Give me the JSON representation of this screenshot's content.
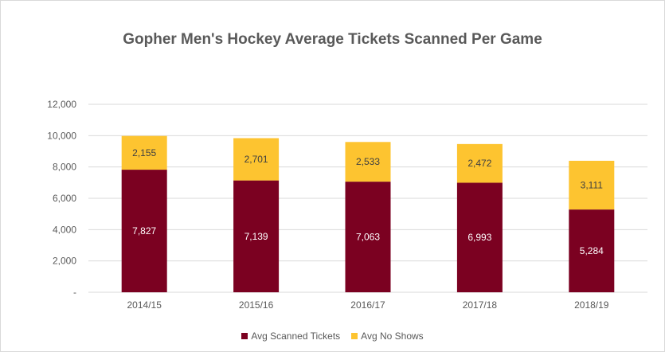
{
  "chart_data": {
    "type": "bar",
    "stacked": true,
    "title": "Gopher Men's Hockey Average Tickets Scanned Per Game",
    "xlabel": "",
    "ylabel": "",
    "categories": [
      "2014/15",
      "2015/16",
      "2016/17",
      "2017/18",
      "2018/19"
    ],
    "series": [
      {
        "name": "Avg Scanned Tickets",
        "color": "#7b0121",
        "values": [
          7827,
          7139,
          7063,
          6993,
          5284
        ]
      },
      {
        "name": "Avg No Shows",
        "color": "#fdc430",
        "values": [
          2155,
          2701,
          2533,
          2472,
          3111
        ]
      }
    ],
    "ylim": [
      0,
      12000
    ],
    "yticks": [
      0,
      2000,
      4000,
      6000,
      8000,
      10000,
      12000
    ],
    "ytick_labels": [
      "-",
      "2,000",
      "4,000",
      "6,000",
      "8,000",
      "10,000",
      "12,000"
    ],
    "grid": true,
    "legend_position": "bottom"
  }
}
